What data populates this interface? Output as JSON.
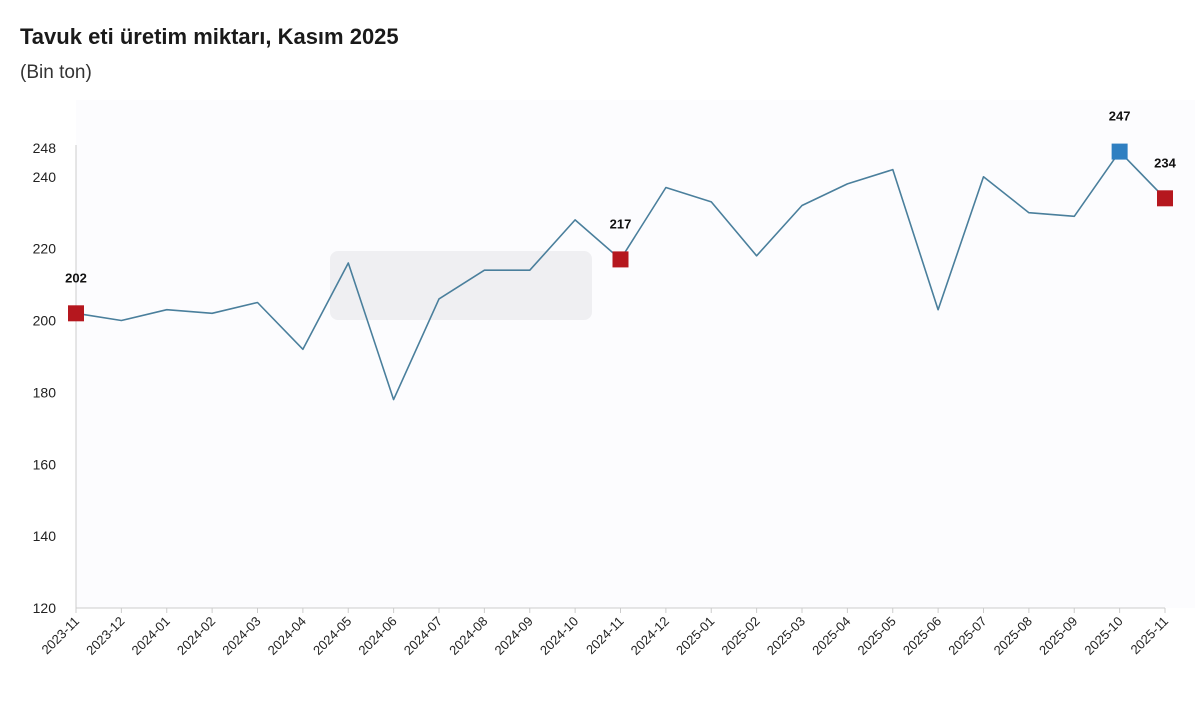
{
  "header": {
    "title": "Tavuk eti üretim miktarı, Kasım 2025",
    "subtitle": "(Bin ton)"
  },
  "colors": {
    "line": "#4a7f9c",
    "marker_red": "#b5171e",
    "marker_blue": "#2f7fc1",
    "axis": "#cccccc",
    "plot_bg": "#fcfcfe",
    "overlay": "#e9e9ec"
  },
  "chart_data": {
    "type": "line",
    "title": "Tavuk eti üretim miktarı, Kasım 2025",
    "subtitle": "(Bin ton)",
    "xlabel": "",
    "ylabel": "",
    "ylim": [
      120,
      248
    ],
    "yticks": [
      120,
      140,
      160,
      180,
      200,
      220,
      240,
      248
    ],
    "grid": false,
    "categories": [
      "2023-11",
      "2023-12",
      "2024-01",
      "2024-02",
      "2024-03",
      "2024-04",
      "2024-05",
      "2024-06",
      "2024-07",
      "2024-08",
      "2024-09",
      "2024-10",
      "2024-11",
      "2024-12",
      "2025-01",
      "2025-02",
      "2025-03",
      "2025-04",
      "2025-05",
      "2025-06",
      "2025-07",
      "2025-08",
      "2025-09",
      "2025-10",
      "2025-11"
    ],
    "series": [
      {
        "name": "",
        "values": [
          202,
          200,
          203,
          202,
          205,
          192,
          216,
          178,
          206,
          214,
          214,
          228,
          217,
          237,
          233,
          218,
          232,
          238,
          242,
          203,
          240,
          230,
          229,
          247,
          234
        ]
      }
    ],
    "highlighted_points": [
      {
        "index": 0,
        "label": "202",
        "marker": "red"
      },
      {
        "index": 12,
        "label": "217",
        "marker": "red"
      },
      {
        "index": 23,
        "label": "247",
        "marker": "blue"
      },
      {
        "index": 24,
        "label": "234",
        "marker": "red"
      }
    ]
  }
}
